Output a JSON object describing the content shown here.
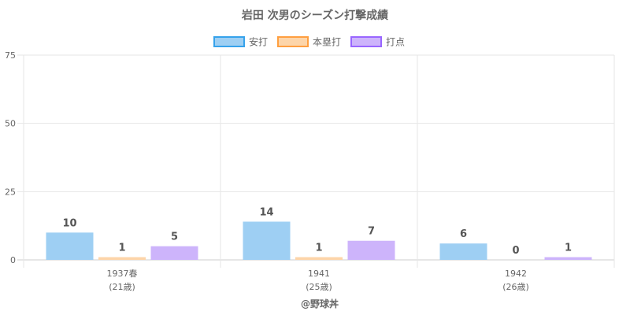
{
  "chart_data": {
    "type": "bar",
    "title": "岩田 次男のシーズン打撃成績",
    "categories": [
      {
        "line1": "1937春",
        "line2": "(21歳)"
      },
      {
        "line1": "1941",
        "line2": "(25歳)"
      },
      {
        "line1": "1942",
        "line2": "(26歳)"
      }
    ],
    "series": [
      {
        "name": "安打",
        "values": [
          10,
          14,
          6
        ],
        "fill": "#9ecff3",
        "stroke": "#36a2eb"
      },
      {
        "name": "本塁打",
        "values": [
          1,
          1,
          0
        ],
        "fill": "#fdd5a9",
        "stroke": "#ff9f40"
      },
      {
        "name": "打点",
        "values": [
          5,
          7,
          1
        ],
        "fill": "#cdb4fb",
        "stroke": "#9966ff"
      }
    ],
    "ylim": [
      0,
      75
    ],
    "yticks": [
      0,
      25,
      50,
      75
    ],
    "grid": true,
    "legend_position": "top"
  },
  "credit": "@野球丼"
}
